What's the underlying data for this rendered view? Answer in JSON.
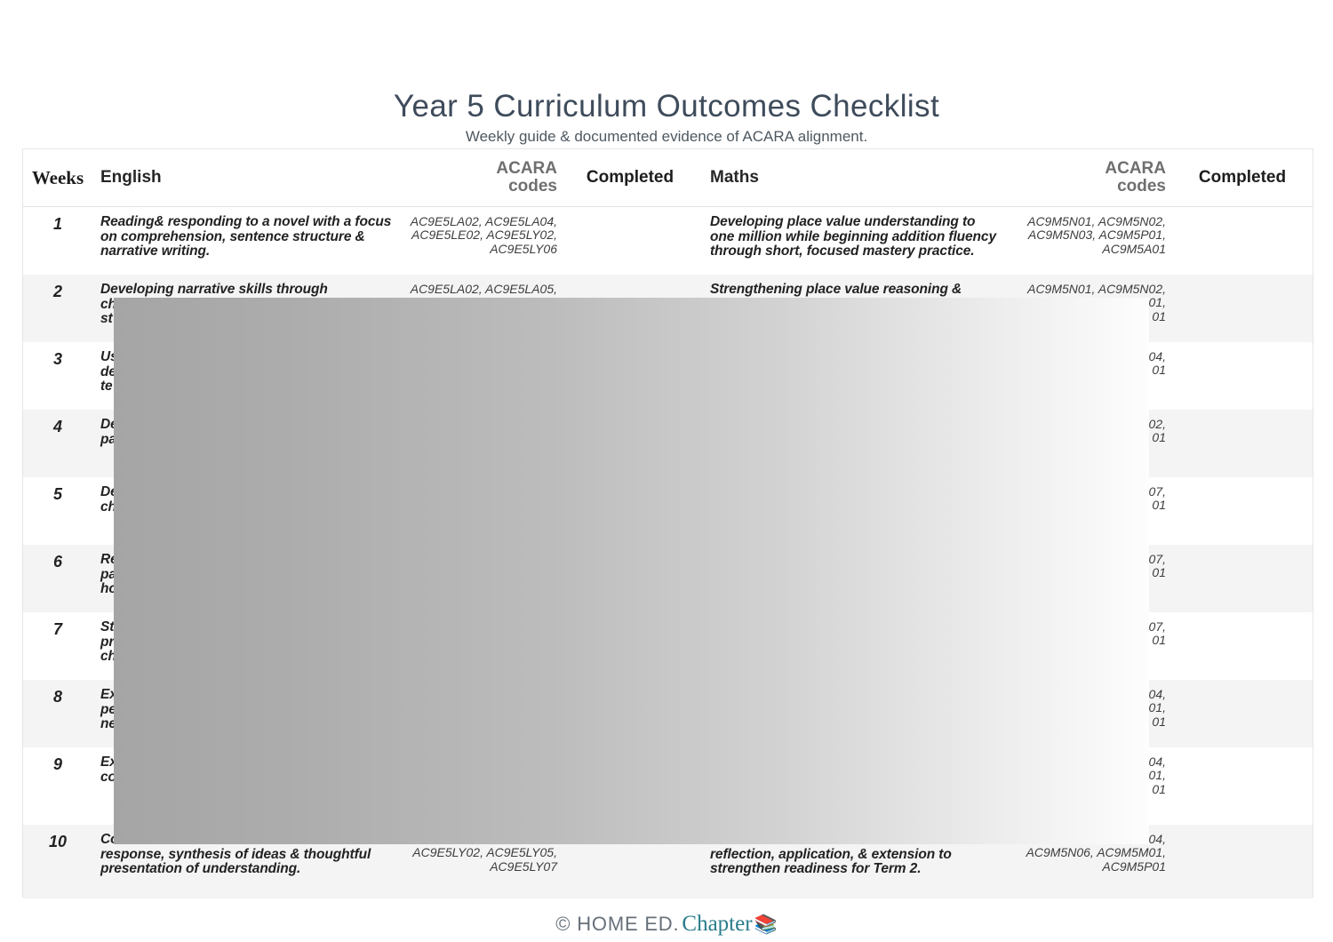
{
  "page": {
    "title": "Year 5 Curriculum Outcomes Checklist",
    "subtitle": "Weekly guide & documented evidence of ACARA alignment.",
    "footer": {
      "copyright": "© HOME ED.",
      "brand": "Chapter",
      "icon": "books-stack-emoji",
      "icon_glyph": "📚"
    }
  },
  "colors": {
    "title_text": "#3e4b5b",
    "brand_teal": "#2a7d8c",
    "row_stripe": "#f4f4f5",
    "overlay_gradient_start": "#a5a5a5",
    "overlay_gradient_end": "#fdfdfd"
  },
  "overlay": {
    "description": "gray gradient redaction block covering table middle"
  },
  "table": {
    "headers": {
      "weeks": "Weeks",
      "english": "English",
      "acara_codes_1": "ACARA codes",
      "completed_1": "Completed",
      "maths": "Maths",
      "acara_codes_2": "ACARA codes",
      "completed_2": "Completed"
    },
    "rows": [
      {
        "week": "1",
        "english": [
          "Reading& responding to a novel with a focus",
          "on comprehension, sentence structure &",
          "narrative writing."
        ],
        "english_codes": [
          "AC9E5LA02, AC9E5LA04,",
          "AC9E5LE02, AC9E5LY02,",
          "AC9E5LY06"
        ],
        "maths": [
          "Developing place value understanding to",
          "one million while beginning addition fluency",
          "through short, focused mastery practice."
        ],
        "maths_codes": [
          "AC9M5N01, AC9M5N02,",
          "AC9M5N03, AC9M5P01,",
          "AC9M5A01"
        ]
      },
      {
        "week": "2",
        "english": [
          "Developing narrative skills through",
          "ch",
          "st"
        ],
        "english_codes": [
          "AC9E5LA02, AC9E5LA05,"
        ],
        "maths": [
          "Strengthening place value reasoning &"
        ],
        "maths_codes": [
          "AC9M5N01, AC9M5N02,",
          "01,",
          "01"
        ]
      },
      {
        "week": "3",
        "english": [
          "Us",
          "de",
          "te"
        ],
        "english_codes": [],
        "maths": [],
        "maths_codes": [
          "04,",
          "01"
        ]
      },
      {
        "week": "4",
        "english": [
          "De",
          "pa"
        ],
        "english_codes": [],
        "maths": [],
        "maths_codes": [
          "02,",
          "01"
        ]
      },
      {
        "week": "5",
        "english": [
          "De",
          "ch"
        ],
        "english_codes": [],
        "maths": [],
        "maths_codes": [
          "07,",
          "01"
        ]
      },
      {
        "week": "6",
        "english": [
          "Re",
          "pa",
          "ho"
        ],
        "english_codes": [],
        "maths": [],
        "maths_codes": [
          "07,",
          "01"
        ]
      },
      {
        "week": "7",
        "english": [
          "St",
          "pr",
          "ch"
        ],
        "english_codes": [],
        "maths": [],
        "maths_codes": [
          "07,",
          "01"
        ]
      },
      {
        "week": "8",
        "english": [
          "Ex",
          "pe",
          "ne"
        ],
        "english_codes": [],
        "maths": [],
        "maths_codes": [
          "04,",
          "01,",
          "01"
        ]
      },
      {
        "week": "9",
        "english": [
          "Ex",
          "co"
        ],
        "english_codes": [],
        "maths": [],
        "maths_codes": [
          "04,",
          "01,",
          "01"
        ]
      },
      {
        "week": "10",
        "english": [
          "Co",
          "response, synthesis of ideas & thoughtful",
          "presentation of understanding."
        ],
        "english_codes": [
          "",
          "AC9E5LY02, AC9E5LY05,",
          "AC9E5LY07"
        ],
        "maths": [
          "",
          "reflection, application, & extension to",
          "strengthen readiness for Term 2."
        ],
        "maths_codes": [
          "04,",
          "AC9M5N06, AC9M5M01,",
          "AC9M5P01"
        ]
      }
    ]
  }
}
